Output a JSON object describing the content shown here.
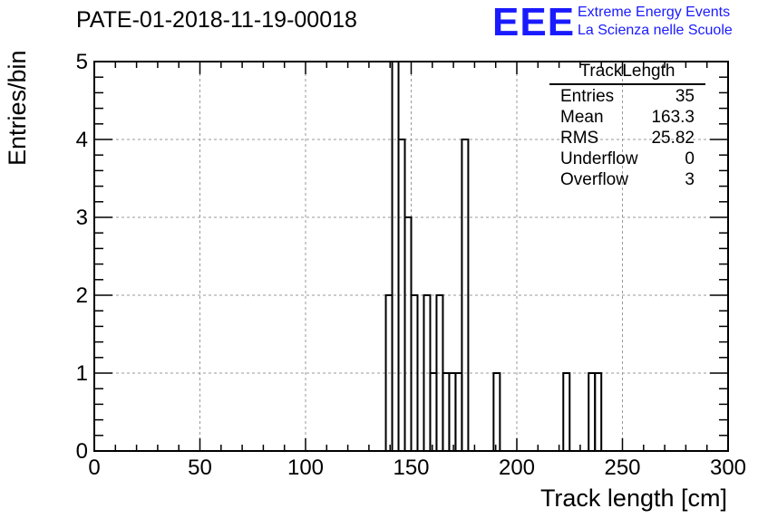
{
  "title": "PATE-01-2018-11-19-00018",
  "logo": {
    "mark": "EEE",
    "line1": "Extreme Energy Events",
    "line2": "La Scienza nelle Scuole",
    "color": "#1a1aff"
  },
  "stats_box": {
    "title": "TrackLength",
    "rows": [
      {
        "label": "Entries",
        "value": "35"
      },
      {
        "label": "Mean",
        "value": "163.3"
      },
      {
        "label": "RMS",
        "value": "25.82"
      },
      {
        "label": "Underflow",
        "value": "0"
      },
      {
        "label": "Overflow",
        "value": "3"
      }
    ]
  },
  "chart_data": {
    "type": "bar",
    "style": "step-histogram",
    "title": "PATE-01-2018-11-19-00018",
    "xlabel": "Track length [cm]",
    "ylabel": "Entries/bin",
    "xlim": [
      0,
      300
    ],
    "ylim": [
      0,
      5
    ],
    "x_ticks": [
      "0",
      "50",
      "100",
      "150",
      "200",
      "250",
      "300"
    ],
    "y_ticks": [
      "0",
      "1",
      "2",
      "3",
      "4",
      "5"
    ],
    "grid": true,
    "bin_width": 3,
    "bins": [
      {
        "x0": 138,
        "value": 2
      },
      {
        "x0": 141,
        "value": 5
      },
      {
        "x0": 144,
        "value": 4
      },
      {
        "x0": 147,
        "value": 3
      },
      {
        "x0": 150,
        "value": 2
      },
      {
        "x0": 156,
        "value": 2
      },
      {
        "x0": 159,
        "value": 1
      },
      {
        "x0": 162,
        "value": 2
      },
      {
        "x0": 165,
        "value": 1
      },
      {
        "x0": 168,
        "value": 1
      },
      {
        "x0": 171,
        "value": 1
      },
      {
        "x0": 174,
        "value": 4
      },
      {
        "x0": 189,
        "value": 1
      },
      {
        "x0": 222,
        "value": 1
      },
      {
        "x0": 234,
        "value": 1
      },
      {
        "x0": 237,
        "value": 1
      }
    ]
  }
}
